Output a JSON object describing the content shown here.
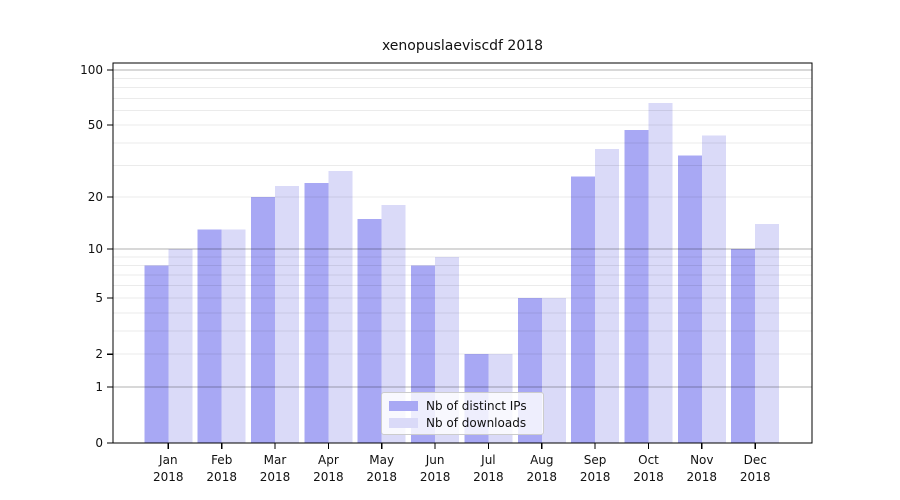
{
  "chart_data": {
    "type": "bar",
    "title": "xenopuslaeviscdf 2018",
    "categories": [
      "Jan",
      "Feb",
      "Mar",
      "Apr",
      "May",
      "Jun",
      "Jul",
      "Aug",
      "Sep",
      "Oct",
      "Nov",
      "Dec"
    ],
    "x_tick_second_line": "2018",
    "series": [
      {
        "name": "Nb of distinct IPs",
        "color": "#a8a8f4",
        "values": [
          8,
          13,
          20,
          24,
          15,
          8,
          2,
          5,
          26,
          47,
          34,
          10
        ]
      },
      {
        "name": "Nb of downloads",
        "color": "#dadaf8",
        "values": [
          10,
          13,
          23,
          28,
          18,
          9,
          2,
          5,
          37,
          66,
          44,
          14
        ]
      }
    ],
    "yscale": "log1p",
    "ylabel": "",
    "xlabel": "",
    "yticks": [
      0,
      1,
      2,
      5,
      10,
      20,
      50,
      100
    ],
    "ylim": [
      0,
      109
    ],
    "grid": {
      "on": true,
      "major_values": [
        1,
        10,
        100
      ],
      "minor_values": [
        2,
        3,
        4,
        5,
        6,
        7,
        8,
        9,
        20,
        30,
        40,
        50,
        60,
        70,
        80,
        90
      ],
      "major_color": "rgba(0,0,0,0.30)",
      "minor_color": "rgba(0,0,0,0.08)"
    },
    "legend": {
      "position": "inside-bottom-center"
    },
    "axis_color": "#000000",
    "background": "#ffffff"
  }
}
